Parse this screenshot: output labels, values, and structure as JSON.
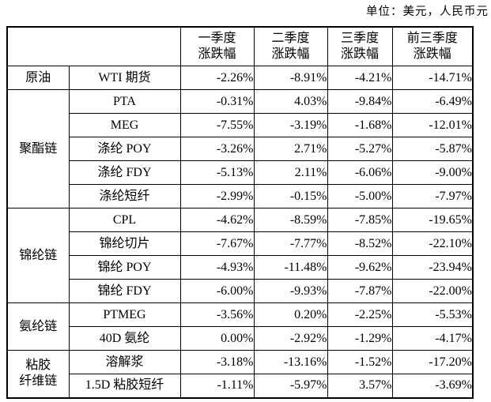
{
  "unit_label": "单位：美元，人民币元",
  "table": {
    "headers": [
      "一季度\n涨跌幅",
      "二季度\n涨跌幅",
      "三季度\n涨跌幅",
      "前三季度\n涨跌幅"
    ],
    "groups": [
      {
        "category": "原油",
        "rows": [
          {
            "name": "WTI 期货",
            "values": [
              "-2.26%",
              "-8.91%",
              "-4.21%",
              "-14.71%"
            ]
          }
        ]
      },
      {
        "category": "聚酯链",
        "rows": [
          {
            "name": "PTA",
            "values": [
              "-0.31%",
              "4.03%",
              "-9.84%",
              "-6.49%"
            ]
          },
          {
            "name": "MEG",
            "values": [
              "-7.55%",
              "-3.19%",
              "-1.68%",
              "-12.01%"
            ]
          },
          {
            "name": "涤纶 POY",
            "values": [
              "-3.26%",
              "2.71%",
              "-5.27%",
              "-5.87%"
            ]
          },
          {
            "name": "涤纶 FDY",
            "values": [
              "-5.13%",
              "2.11%",
              "-6.06%",
              "-9.00%"
            ]
          },
          {
            "name": "涤纶短纤",
            "values": [
              "-2.99%",
              "-0.15%",
              "-5.00%",
              "-7.97%"
            ]
          }
        ]
      },
      {
        "category": "锦纶链",
        "rows": [
          {
            "name": "CPL",
            "values": [
              "-4.62%",
              "-8.59%",
              "-7.85%",
              "-19.65%"
            ]
          },
          {
            "name": "锦纶切片",
            "values": [
              "-7.67%",
              "-7.77%",
              "-8.52%",
              "-22.10%"
            ]
          },
          {
            "name": "锦纶 POY",
            "values": [
              "-4.93%",
              "-11.48%",
              "-9.62%",
              "-23.94%"
            ]
          },
          {
            "name": "锦纶 FDY",
            "values": [
              "-6.00%",
              "-9.93%",
              "-7.87%",
              "-22.00%"
            ]
          }
        ]
      },
      {
        "category": "氨纶链",
        "rows": [
          {
            "name": "PTMEG",
            "values": [
              "-3.56%",
              "0.20%",
              "-2.25%",
              "-5.53%"
            ]
          },
          {
            "name": "40D 氨纶",
            "values": [
              "0.00%",
              "-2.92%",
              "-1.29%",
              "-4.17%"
            ]
          }
        ]
      },
      {
        "category": "粘胶\n纤维链",
        "rows": [
          {
            "name": "溶解浆",
            "values": [
              "-3.18%",
              "-13.16%",
              "-1.52%",
              "-17.20%"
            ]
          },
          {
            "name": "1.5D 粘胶短纤",
            "values": [
              "-1.11%",
              "-5.97%",
              "3.57%",
              "-3.69%"
            ]
          }
        ]
      }
    ]
  }
}
